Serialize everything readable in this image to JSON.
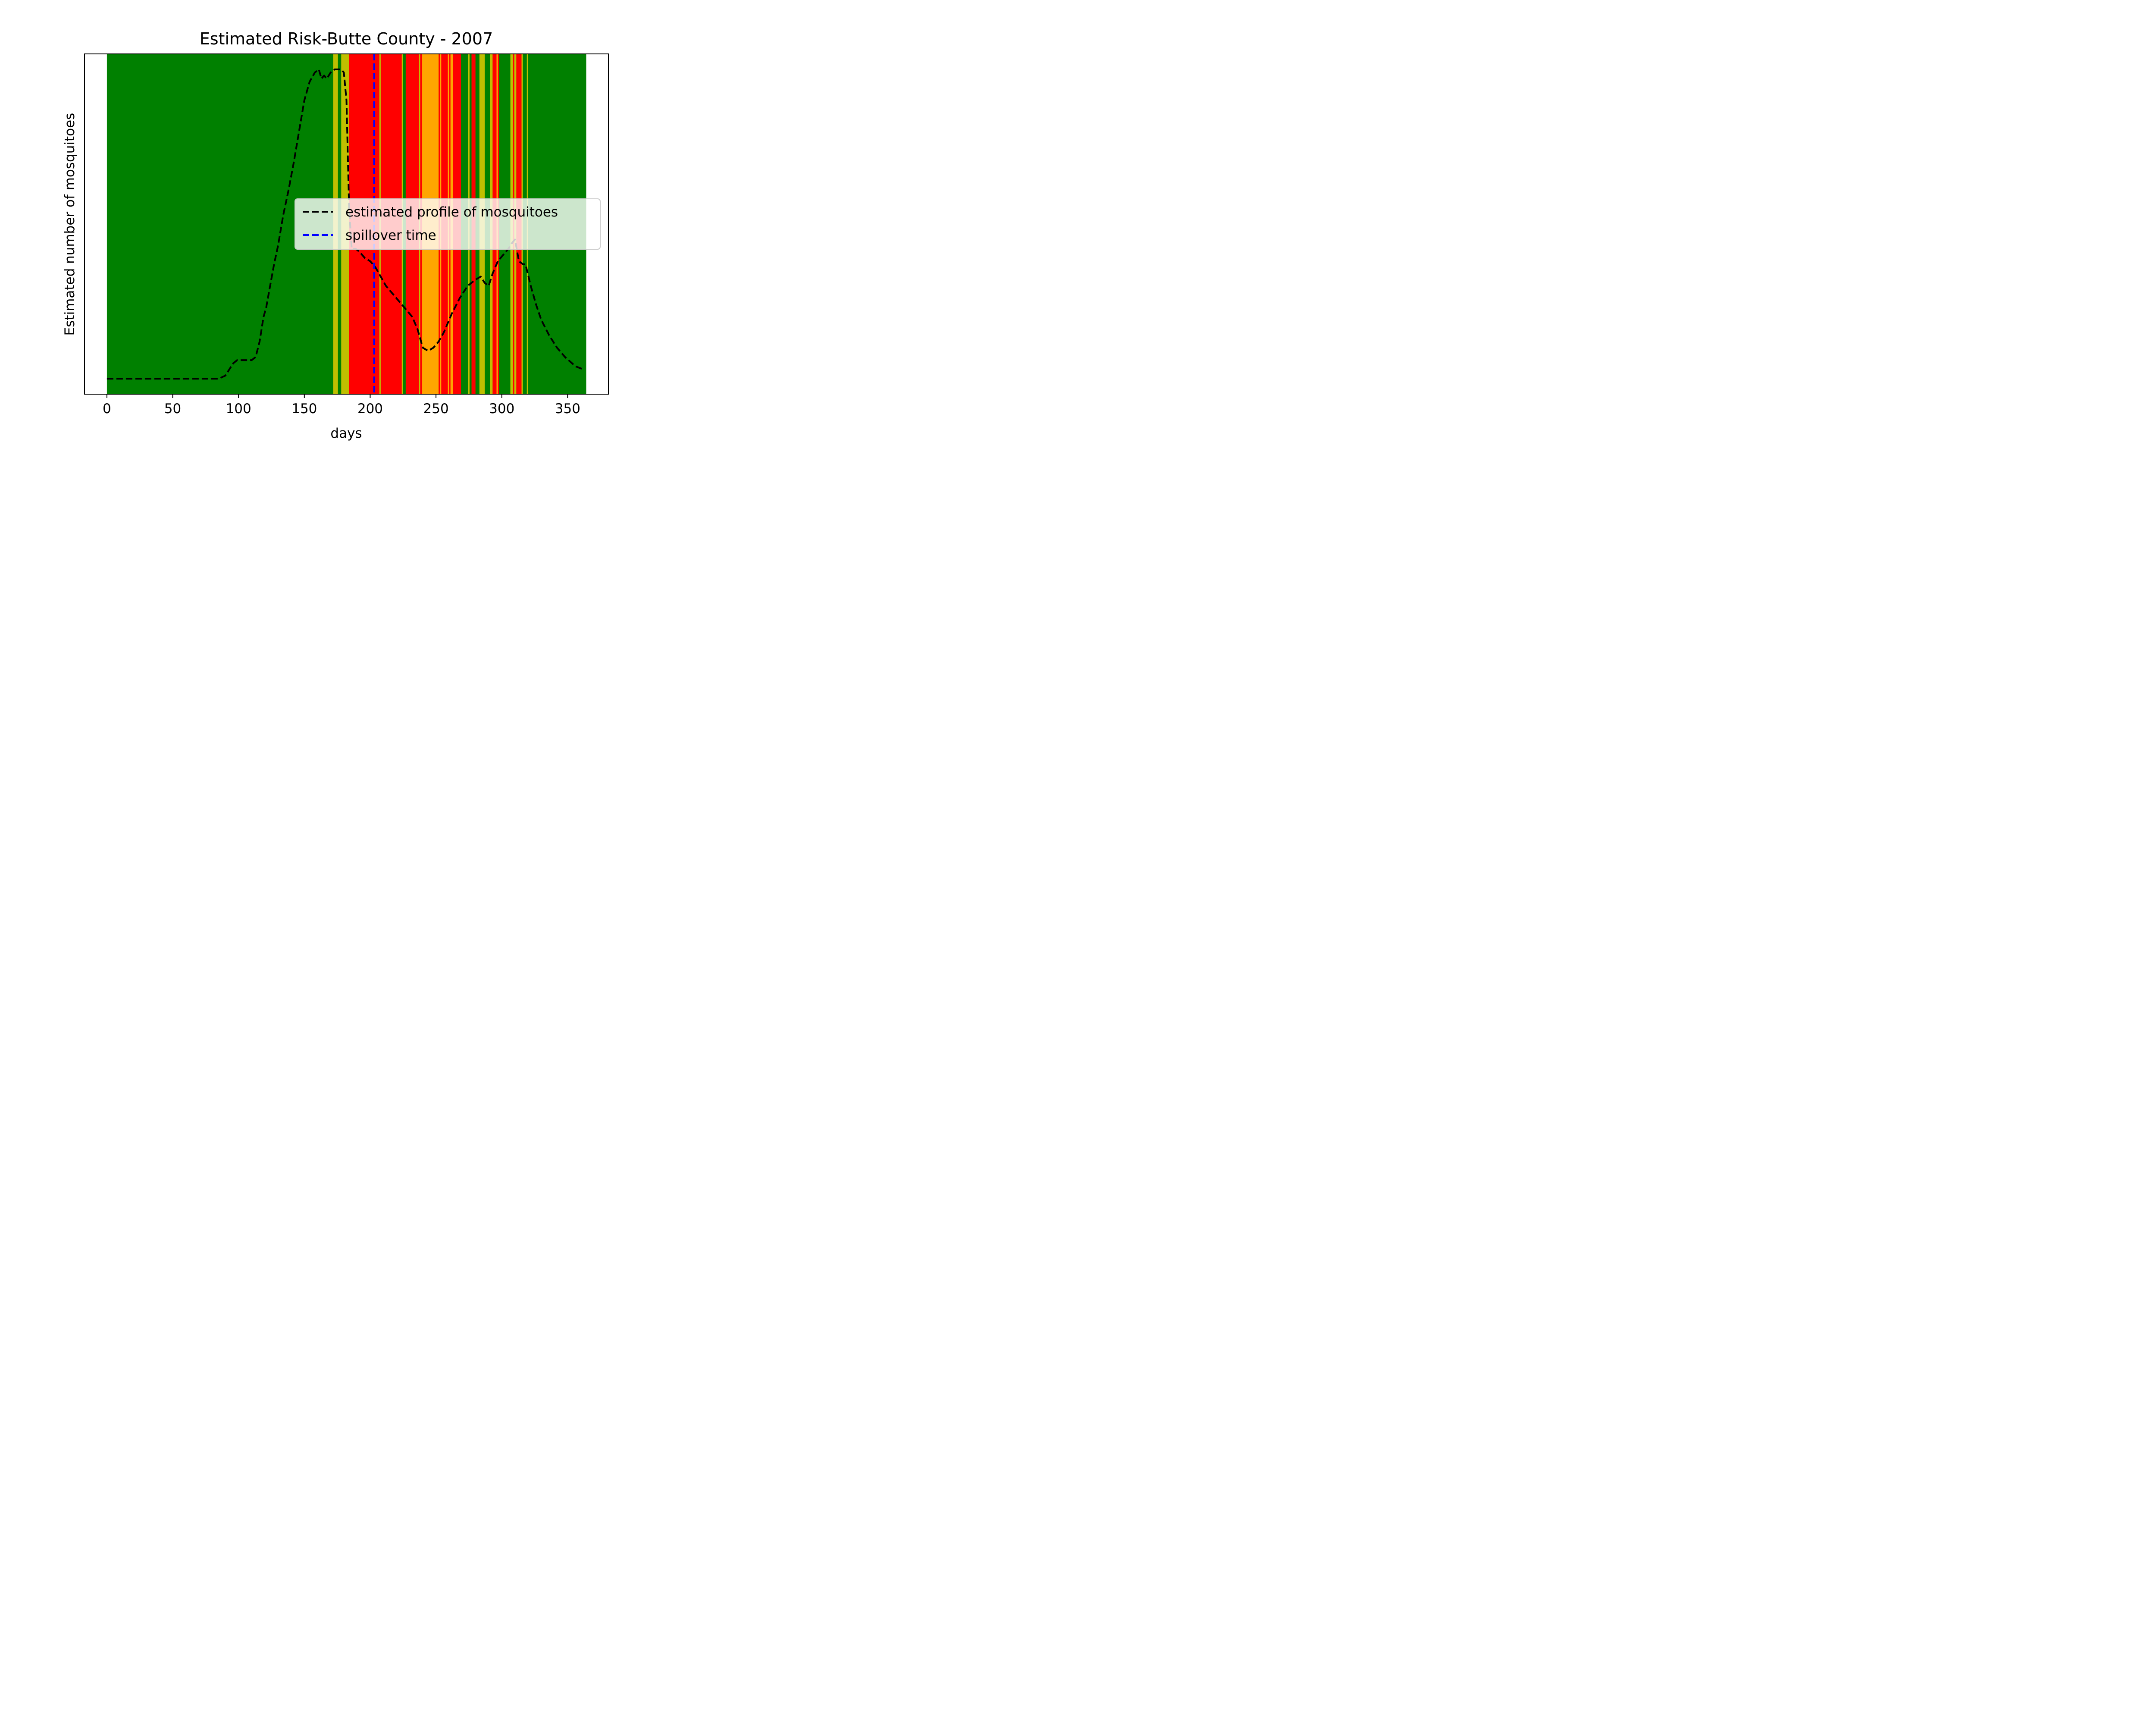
{
  "chart_data": {
    "type": "line",
    "title": "Estimated Risk-Butte County - 2007",
    "xlabel": "days",
    "ylabel": "Estimated number of mosquitoes",
    "xlim": [
      -17,
      381
    ],
    "ylim": [
      -0.05,
      1.05
    ],
    "x_ticks": [
      0,
      50,
      100,
      150,
      200,
      250,
      300,
      350
    ],
    "y_ticks_shown": false,
    "grid": false,
    "legend_position": "center-right",
    "spillover_day": 203,
    "colors": {
      "green": "#008000",
      "yellow": "#bfbf00",
      "orange": "#ffa500",
      "red": "#ff0000",
      "profile": "#000000",
      "spillover": "#0000ff"
    },
    "risk_bands": [
      {
        "start": 0,
        "end": 172,
        "level": "green"
      },
      {
        "start": 172,
        "end": 175.5,
        "level": "yellow"
      },
      {
        "start": 175.5,
        "end": 178,
        "level": "green"
      },
      {
        "start": 178,
        "end": 184,
        "level": "yellow"
      },
      {
        "start": 184,
        "end": 207,
        "level": "red"
      },
      {
        "start": 207,
        "end": 208,
        "level": "yellow"
      },
      {
        "start": 208,
        "end": 224,
        "level": "red"
      },
      {
        "start": 224,
        "end": 225,
        "level": "yellow"
      },
      {
        "start": 225,
        "end": 227,
        "level": "green"
      },
      {
        "start": 227,
        "end": 237,
        "level": "red"
      },
      {
        "start": 237,
        "end": 238,
        "level": "yellow"
      },
      {
        "start": 238,
        "end": 239.5,
        "level": "red"
      },
      {
        "start": 239.5,
        "end": 252,
        "level": "orange"
      },
      {
        "start": 252,
        "end": 253,
        "level": "red"
      },
      {
        "start": 253,
        "end": 254,
        "level": "orange"
      },
      {
        "start": 254,
        "end": 259,
        "level": "red"
      },
      {
        "start": 259,
        "end": 260,
        "level": "orange"
      },
      {
        "start": 260,
        "end": 261,
        "level": "red"
      },
      {
        "start": 261,
        "end": 263,
        "level": "orange"
      },
      {
        "start": 263,
        "end": 269,
        "level": "red"
      },
      {
        "start": 269,
        "end": 274.5,
        "level": "green"
      },
      {
        "start": 274.5,
        "end": 275.5,
        "level": "yellow"
      },
      {
        "start": 275.5,
        "end": 277,
        "level": "green"
      },
      {
        "start": 277,
        "end": 280,
        "level": "red"
      },
      {
        "start": 280,
        "end": 283,
        "level": "green"
      },
      {
        "start": 283,
        "end": 287,
        "level": "yellow"
      },
      {
        "start": 287,
        "end": 291,
        "level": "green"
      },
      {
        "start": 291,
        "end": 293,
        "level": "yellow"
      },
      {
        "start": 293,
        "end": 296,
        "level": "red"
      },
      {
        "start": 296,
        "end": 297,
        "level": "orange"
      },
      {
        "start": 297,
        "end": 298,
        "level": "red"
      },
      {
        "start": 298,
        "end": 306.5,
        "level": "green"
      },
      {
        "start": 306.5,
        "end": 308.5,
        "level": "yellow"
      },
      {
        "start": 308.5,
        "end": 309.5,
        "level": "red"
      },
      {
        "start": 309.5,
        "end": 311,
        "level": "yellow"
      },
      {
        "start": 311,
        "end": 315,
        "level": "red"
      },
      {
        "start": 315,
        "end": 316,
        "level": "yellow"
      },
      {
        "start": 316,
        "end": 319,
        "level": "green"
      },
      {
        "start": 319,
        "end": 320,
        "level": "yellow"
      },
      {
        "start": 320,
        "end": 364,
        "level": "green"
      }
    ],
    "series": [
      {
        "name": "estimated profile of mosquitoes",
        "style": "dashed",
        "x": [
          0,
          85,
          90,
          93,
          96,
          99,
          103,
          106,
          110,
          113,
          116,
          119,
          121,
          124,
          127,
          130,
          134,
          138,
          142,
          146,
          150,
          154,
          158,
          161,
          163,
          165,
          167,
          170,
          173,
          176,
          178,
          180,
          182,
          184,
          186,
          187,
          189,
          192,
          196,
          200,
          204,
          208,
          212,
          216,
          222,
          228,
          232,
          236,
          240,
          244,
          248,
          252,
          256,
          262,
          268,
          274,
          280,
          284,
          287,
          290,
          293,
          297,
          301,
          305,
          308,
          310,
          313,
          316,
          318,
          322,
          326,
          330,
          336,
          342,
          348,
          356,
          362
        ],
        "y": [
          0.0,
          0.0,
          0.01,
          0.03,
          0.05,
          0.06,
          0.06,
          0.06,
          0.06,
          0.07,
          0.12,
          0.2,
          0.23,
          0.3,
          0.37,
          0.43,
          0.53,
          0.61,
          0.7,
          0.8,
          0.9,
          0.96,
          0.99,
          1.0,
          0.97,
          0.98,
          0.97,
          0.99,
          1.0,
          1.0,
          1.0,
          0.99,
          0.9,
          0.55,
          0.42,
          0.42,
          0.42,
          0.41,
          0.39,
          0.38,
          0.36,
          0.33,
          0.3,
          0.28,
          0.25,
          0.22,
          0.2,
          0.16,
          0.1,
          0.09,
          0.1,
          0.12,
          0.15,
          0.21,
          0.26,
          0.3,
          0.32,
          0.33,
          0.31,
          0.3,
          0.34,
          0.38,
          0.4,
          0.42,
          0.44,
          0.45,
          0.38,
          0.37,
          0.37,
          0.3,
          0.24,
          0.19,
          0.14,
          0.1,
          0.07,
          0.04,
          0.03
        ]
      },
      {
        "name": "spillover time",
        "style": "dashed"
      }
    ]
  }
}
